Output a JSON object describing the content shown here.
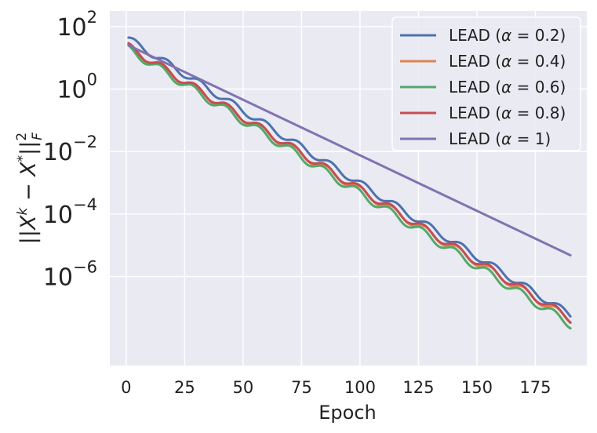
{
  "chart_data": {
    "type": "line",
    "xlabel": "Epoch",
    "ylabel": "||X^k − X*||_F^2",
    "ylabel_parts": {
      "norm": "||",
      "x": "X",
      "k": "k",
      "minus": " − ",
      "star": "*",
      "F": "F",
      "two": "2"
    },
    "xscale": "linear",
    "yscale": "log",
    "xlim": [
      -7,
      197
    ],
    "ylim_exponent": [
      -8.85,
      2.5
    ],
    "xticks": [
      0,
      25,
      50,
      75,
      100,
      125,
      150,
      175
    ],
    "xtick_labels": [
      "0",
      "25",
      "50",
      "75",
      "100",
      "125",
      "150",
      "175"
    ],
    "yticks_exponent": [
      2,
      0,
      -2,
      -4,
      -6
    ],
    "ytick_labels": [
      {
        "base": "10",
        "exp": "2"
      },
      {
        "base": "10",
        "exp": "0"
      },
      {
        "base": "10",
        "exp": "−2"
      },
      {
        "base": "10",
        "exp": "−4"
      },
      {
        "base": "10",
        "exp": "−6"
      }
    ],
    "grid": true,
    "legend_position": "top-right",
    "series": [
      {
        "name": "LEAD (α = 0.2)",
        "legend_prefix": "LEAD (",
        "legend_var": "α",
        "legend_suffix": " = 0.2)",
        "color": "#4C72B0",
        "start_log": 1.6,
        "end_log": -7.23,
        "decay_per_epoch": 0.0467,
        "wiggle": 0.11,
        "wiggle_period": 14,
        "wiggle_phase": 0.0
      },
      {
        "name": "LEAD (α = 0.4)",
        "legend_prefix": "LEAD (",
        "legend_var": "α",
        "legend_suffix": " = 0.4)",
        "color": "#DD8452",
        "start_log": 1.33,
        "end_log": -7.38,
        "decay_per_epoch": 0.0461,
        "wiggle": 0.12,
        "wiggle_period": 14,
        "wiggle_phase": 0.1
      },
      {
        "name": "LEAD (α = 0.6)",
        "legend_prefix": "LEAD (",
        "legend_var": "α",
        "legend_suffix": " = 0.6)",
        "color": "#55A868",
        "start_log": 1.27,
        "end_log": -7.53,
        "decay_per_epoch": 0.0466,
        "wiggle": 0.13,
        "wiggle_period": 14,
        "wiggle_phase": 0.2
      },
      {
        "name": "LEAD (α = 0.8)",
        "legend_prefix": "LEAD (",
        "legend_var": "α",
        "legend_suffix": " = 0.8)",
        "color": "#C44E52",
        "start_log": 1.35,
        "end_log": -7.35,
        "decay_per_epoch": 0.0463,
        "wiggle": 0.12,
        "wiggle_period": 14,
        "wiggle_phase": 0.15
      },
      {
        "name": "LEAD (α = 1)",
        "legend_prefix": "LEAD (",
        "legend_var": "α",
        "legend_suffix": " = 1)",
        "color": "#8172B2",
        "start_log": 1.4,
        "end_log": -5.32,
        "decay_per_epoch": 0.0356,
        "wiggle": 0.0,
        "wiggle_period": 14,
        "wiggle_phase": 0.0
      }
    ],
    "x_start": 1,
    "x_end": 190
  }
}
